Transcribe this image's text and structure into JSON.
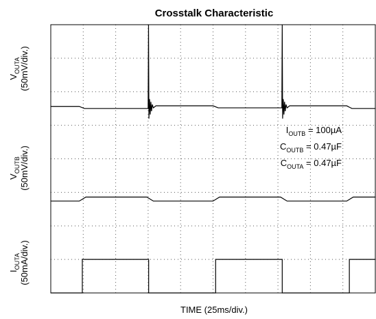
{
  "chart_data": {
    "type": "line",
    "title": "Crosstalk Characteristic",
    "x_label": "TIME (25ms/div.)",
    "y_labels": [
      {
        "main": "V",
        "sub": "OUTA",
        "unit": "(50mV/div.)"
      },
      {
        "main": "V",
        "sub": "OUTB",
        "unit": "(50mV/div.)"
      },
      {
        "main": "I",
        "sub": "OUTA",
        "unit": "(50mA/div.)"
      }
    ],
    "annotations": [
      {
        "main": "I",
        "sub": "OUTB",
        "rest": " = 100µA"
      },
      {
        "main": "C",
        "sub": "OUTB",
        "rest": " = 0.47µF"
      },
      {
        "main": "C",
        "sub": "OUTA",
        "rest": " = 0.47µF"
      }
    ],
    "xlim": [
      0,
      250
    ],
    "xticks": [
      0,
      25,
      50,
      75,
      100,
      125,
      150,
      175,
      200,
      225,
      250
    ],
    "ylim": [
      0,
      8
    ],
    "yticks": [
      0,
      1,
      2,
      3,
      4,
      5,
      6,
      7,
      8
    ],
    "grid": true,
    "series": [
      {
        "color": "#000000",
        "x": [
          0,
          22,
          26,
          75,
          75.3,
          75.6,
          76.1,
          76.6,
          77.1,
          77.6,
          78.2,
          79,
          81,
          125,
          129,
          178,
          178.3,
          178.6,
          179.1,
          179.6,
          180.1,
          180.6,
          181.2,
          182,
          184,
          228,
          232,
          250
        ],
        "values": [
          5.56,
          5.56,
          5.5,
          5.5,
          8.0,
          5.2,
          5.78,
          5.32,
          5.7,
          5.42,
          5.62,
          5.52,
          5.58,
          5.58,
          5.52,
          5.52,
          8.0,
          5.2,
          5.78,
          5.32,
          5.7,
          5.42,
          5.62,
          5.52,
          5.58,
          5.58,
          5.5,
          5.5
        ]
      },
      {
        "color": "#000000",
        "x": [
          0,
          22,
          27,
          74,
          79,
          125,
          130,
          177,
          182,
          228,
          233,
          250
        ],
        "values": [
          2.74,
          2.74,
          2.86,
          2.86,
          2.74,
          2.74,
          2.86,
          2.86,
          2.74,
          2.74,
          2.86,
          2.86
        ]
      },
      {
        "color": "#000000",
        "x": [
          0,
          24.3,
          24.3,
          75.4,
          75.4,
          127,
          127,
          178.3,
          178.3,
          230,
          230,
          250
        ],
        "values": [
          0,
          0,
          1,
          1,
          0,
          0,
          1,
          1,
          0,
          0,
          1,
          1
        ]
      }
    ]
  }
}
